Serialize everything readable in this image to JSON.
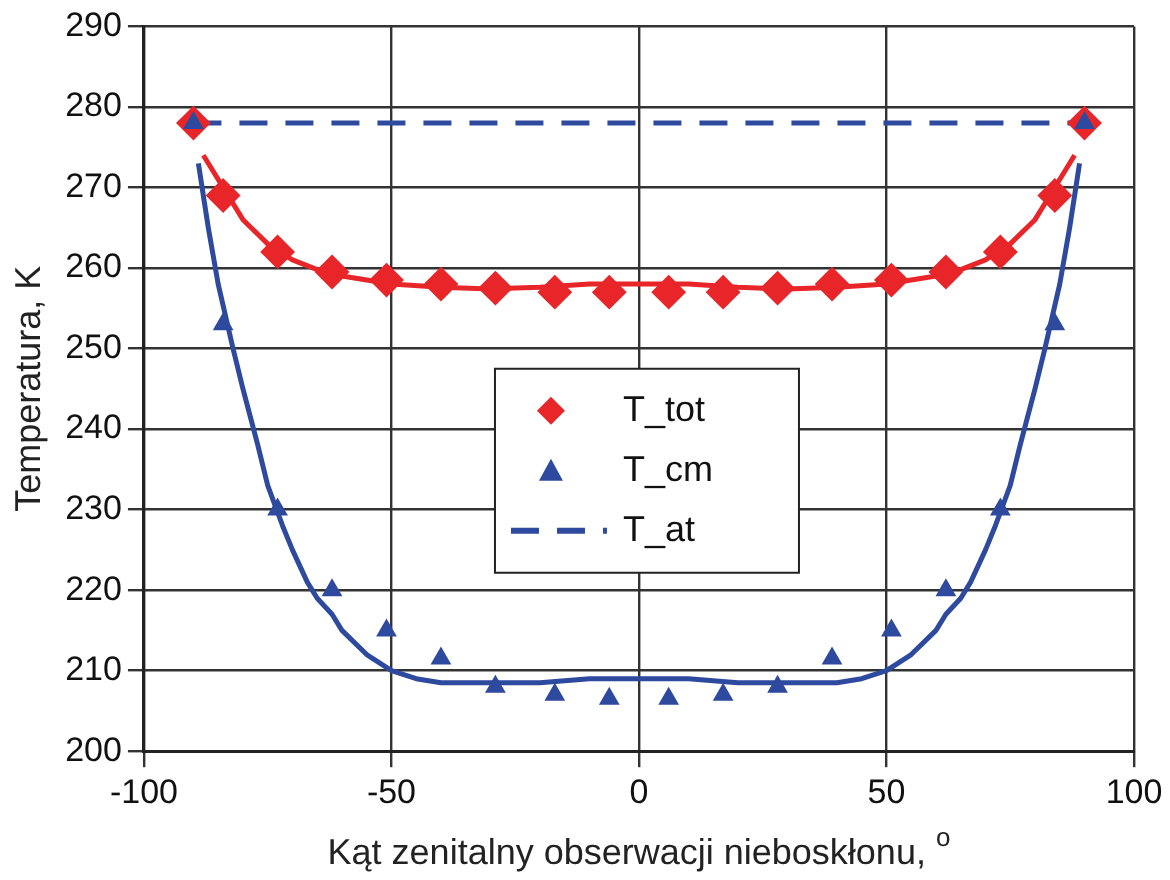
{
  "chart_data": {
    "type": "scatter",
    "xlabel": "Kąt zenitalny obserwacji nieboskłonu, $^{o}$",
    "ylabel": "Temperatura, K",
    "x": [
      -90,
      -84,
      -73,
      -62,
      -51,
      -40,
      -29,
      -17,
      -6,
      6,
      17,
      28,
      39,
      51,
      62,
      73,
      84,
      90
    ],
    "xlim": [
      -100,
      100
    ],
    "xticks": [
      -100,
      -50,
      0,
      50,
      100
    ],
    "ylim": [
      200,
      290
    ],
    "yticks": [
      200,
      210,
      220,
      230,
      240,
      250,
      260,
      270,
      280,
      290
    ],
    "grid": true,
    "legend": "center",
    "series": [
      {
        "name": "T_tot",
        "color": "#e8262a",
        "marker": "diamond",
        "values": [
          278,
          269,
          262,
          259.5,
          258.5,
          258,
          257.5,
          257,
          257,
          257,
          257,
          257.5,
          258,
          258.5,
          259.5,
          262,
          269,
          278
        ]
      },
      {
        "name": "T_cm",
        "color": "#2e4a9e",
        "marker": "triangle",
        "values": [
          278,
          253,
          230,
          220,
          215,
          211.5,
          208,
          207,
          206.5,
          206.5,
          207,
          208,
          211.5,
          215,
          220,
          230,
          253,
          278
        ]
      },
      {
        "name": "T_at",
        "type": "line",
        "color": "#2e4a9e",
        "line_style": "dashed",
        "marker": "none",
        "x": [
          -90,
          90
        ],
        "values": [
          278,
          278
        ]
      },
      {
        "type": "line",
        "color": "#e8262a",
        "line_style": "solid",
        "marker": "none",
        "x": [
          -88,
          -84,
          -80,
          -75,
          -70,
          -65,
          -60,
          -55,
          -50,
          -40,
          -30,
          -20,
          -10,
          0,
          10,
          20,
          30,
          40,
          50,
          55,
          60,
          65,
          70,
          75,
          80,
          84,
          88
        ],
        "values": [
          274,
          270,
          266,
          263,
          261,
          259.8,
          259,
          258.5,
          258,
          257.6,
          257.4,
          257.6,
          258,
          258,
          258,
          257.6,
          257.4,
          257.6,
          258,
          258.5,
          259,
          259.8,
          261,
          263,
          266,
          270,
          274
        ]
      },
      {
        "type": "line",
        "color": "#2e4a9e",
        "line_style": "solid",
        "marker": "none",
        "x": [
          -89,
          -87,
          -85,
          -82,
          -80,
          -77,
          -75,
          -72,
          -70,
          -67,
          -65,
          -62,
          -60,
          -55,
          -50,
          -45,
          -40,
          -30,
          -20,
          -10,
          0,
          10,
          20,
          30,
          40,
          45,
          50,
          55,
          60,
          62,
          65,
          67,
          70,
          72,
          75,
          77,
          80,
          82,
          85,
          87,
          89
        ],
        "values": [
          273,
          265,
          258,
          250,
          245,
          238,
          233,
          228,
          225,
          221,
          219,
          217,
          215,
          212,
          210,
          209,
          208.5,
          208.5,
          208.5,
          209,
          209,
          209,
          208.5,
          208.5,
          208.5,
          209,
          210,
          212,
          215,
          217,
          219,
          221,
          225,
          228,
          233,
          238,
          245,
          250,
          258,
          265,
          273
        ]
      }
    ]
  }
}
